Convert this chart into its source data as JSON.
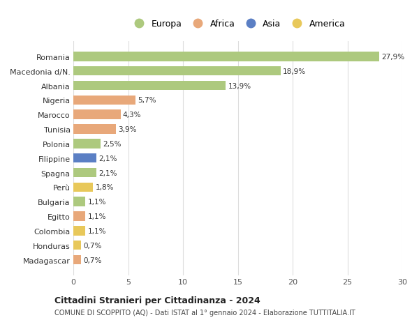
{
  "categories": [
    "Romania",
    "Macedonia d/N.",
    "Albania",
    "Nigeria",
    "Marocco",
    "Tunisia",
    "Polonia",
    "Filippine",
    "Spagna",
    "Perù",
    "Bulgaria",
    "Egitto",
    "Colombia",
    "Honduras",
    "Madagascar"
  ],
  "values": [
    27.9,
    18.9,
    13.9,
    5.7,
    4.3,
    3.9,
    2.5,
    2.1,
    2.1,
    1.8,
    1.1,
    1.1,
    1.1,
    0.7,
    0.7
  ],
  "labels": [
    "27,9%",
    "18,9%",
    "13,9%",
    "5,7%",
    "4,3%",
    "3,9%",
    "2,5%",
    "2,1%",
    "2,1%",
    "1,8%",
    "1,1%",
    "1,1%",
    "1,1%",
    "0,7%",
    "0,7%"
  ],
  "colors": [
    "#adc97e",
    "#adc97e",
    "#adc97e",
    "#e8a87a",
    "#e8a87a",
    "#e8a87a",
    "#adc97e",
    "#5b7fc4",
    "#adc97e",
    "#e8c85a",
    "#adc97e",
    "#e8a87a",
    "#e8c85a",
    "#e8c85a",
    "#e8a87a"
  ],
  "legend": [
    {
      "label": "Europa",
      "color": "#adc97e"
    },
    {
      "label": "Africa",
      "color": "#e8a87a"
    },
    {
      "label": "Asia",
      "color": "#5b7fc4"
    },
    {
      "label": "America",
      "color": "#e8c85a"
    }
  ],
  "title": "Cittadini Stranieri per Cittadinanza - 2024",
  "subtitle": "COMUNE DI SCOPPITO (AQ) - Dati ISTAT al 1° gennaio 2024 - Elaborazione TUTTITALIA.IT",
  "xlim": [
    0,
    30
  ],
  "xticks": [
    0,
    5,
    10,
    15,
    20,
    25,
    30
  ],
  "bg_color": "#ffffff",
  "grid_color": "#dddddd",
  "bar_height": 0.65
}
